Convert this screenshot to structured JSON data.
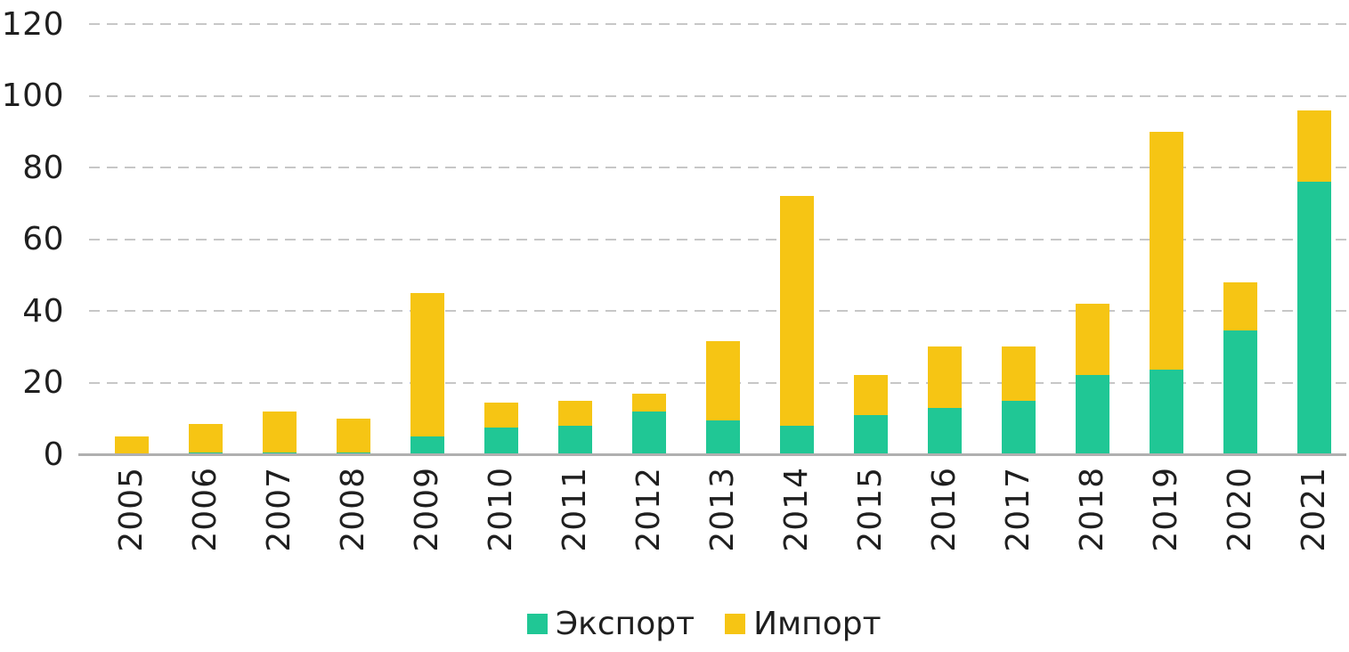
{
  "chart_data": {
    "type": "bar",
    "stacked": true,
    "title": "",
    "xlabel": "",
    "ylabel": "",
    "categories": [
      "2005",
      "2006",
      "2007",
      "2008",
      "2009",
      "2010",
      "2011",
      "2012",
      "2013",
      "2014",
      "2015",
      "2016",
      "2017",
      "2018",
      "2019",
      "2020",
      "2021"
    ],
    "series": [
      {
        "name": "Экспорт",
        "color": "#20C795",
        "values": [
          0,
          0.5,
          0.5,
          0.5,
          5,
          7.5,
          8,
          12,
          9.5,
          8,
          11,
          13,
          15,
          22,
          23.5,
          34.5,
          76
        ]
      },
      {
        "name": "Импорт",
        "color": "#F6C514",
        "values": [
          5,
          8,
          11.5,
          9.5,
          40,
          7,
          7,
          5,
          22,
          64,
          11,
          17,
          15,
          20,
          66.5,
          13.5,
          20
        ]
      }
    ],
    "totals": [
      5,
      8.5,
      12,
      10,
      45,
      14.5,
      15,
      17,
      31.5,
      72,
      22,
      30,
      30,
      42,
      90,
      48,
      96
    ],
    "ylim": [
      0,
      120
    ],
    "yticks": [
      0,
      20,
      40,
      60,
      80,
      100,
      120
    ],
    "grid": "horizontal-dashed",
    "gridline_color": "#C7C7C7",
    "axis_line_color": "#B0B0B0",
    "text_color": "#1F1F1F",
    "background_color": "#FFFFFF",
    "legend_position": "bottom-center",
    "x_tick_rotation_deg": 90
  }
}
